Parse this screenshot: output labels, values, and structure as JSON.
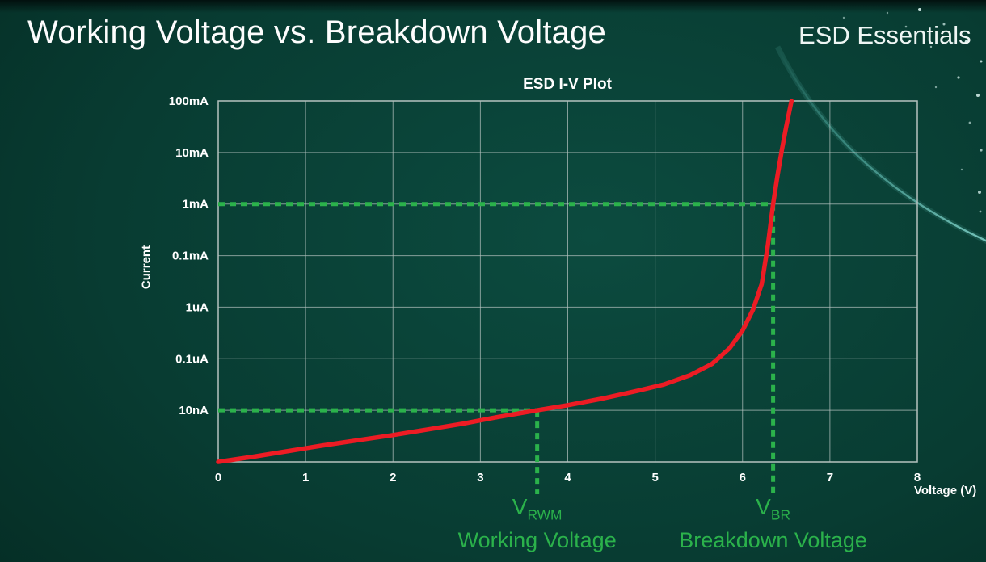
{
  "page": {
    "title": "Working Voltage vs. Breakdown Voltage",
    "brand": "ESD Essentials"
  },
  "colors": {
    "background_teal": "#083c32",
    "grid": "#b5c2bf",
    "tick_text": "#ffffff",
    "curve_red": "#ec1c24",
    "annotation_green": "#2bb24b"
  },
  "chart_data": {
    "type": "line",
    "title": "ESD I-V Plot",
    "xlabel": "Voltage (V)",
    "ylabel": "Current",
    "x_ticks": [
      0,
      1,
      2,
      3,
      4,
      5,
      6,
      7,
      8
    ],
    "xlim": [
      0,
      8
    ],
    "y_scale": "log",
    "y_tick_labels": [
      "100mA",
      "10mA",
      "1mA",
      "0.1mA",
      "1uA",
      "0.1uA",
      "10nA"
    ],
    "y_axis_note": "Current on log scale; curve y-coordinates given as gridline rows from top: 0=100mA, 1=10mA, 2=1mA, 3=0.1mA, 4=1uA, 5=0.1uA, 6=10nA, 7=bottom axis",
    "grid": true,
    "series": [
      {
        "name": "ESD diode I-V curve",
        "color": "#ec1c24",
        "points": [
          [
            0,
            7.0
          ],
          [
            0.4,
            6.9
          ],
          [
            0.8,
            6.79
          ],
          [
            1.2,
            6.68
          ],
          [
            1.6,
            6.58
          ],
          [
            2.0,
            6.48
          ],
          [
            2.4,
            6.37
          ],
          [
            2.8,
            6.26
          ],
          [
            3.2,
            6.13
          ],
          [
            3.65,
            6.0
          ],
          [
            4.0,
            5.9
          ],
          [
            4.4,
            5.77
          ],
          [
            4.8,
            5.62
          ],
          [
            5.1,
            5.5
          ],
          [
            5.4,
            5.32
          ],
          [
            5.65,
            5.1
          ],
          [
            5.85,
            4.8
          ],
          [
            6.0,
            4.45
          ],
          [
            6.12,
            4.05
          ],
          [
            6.22,
            3.55
          ],
          [
            6.29,
            2.8
          ],
          [
            6.35,
            2.0
          ],
          [
            6.4,
            1.45
          ],
          [
            6.45,
            0.95
          ],
          [
            6.5,
            0.5
          ],
          [
            6.56,
            0.0
          ]
        ]
      }
    ],
    "annotations": {
      "working": {
        "symbol_main": "V",
        "symbol_sub": "RWM",
        "label": "Working Voltage",
        "voltage": 3.65,
        "current_label": "10nA",
        "current_row": 6,
        "color": "#2bb24b"
      },
      "breakdown": {
        "symbol_main": "V",
        "symbol_sub": "BR",
        "label": "Breakdown Voltage",
        "voltage": 6.35,
        "current_label": "1mA",
        "current_row": 2,
        "color": "#2bb24b"
      }
    }
  }
}
